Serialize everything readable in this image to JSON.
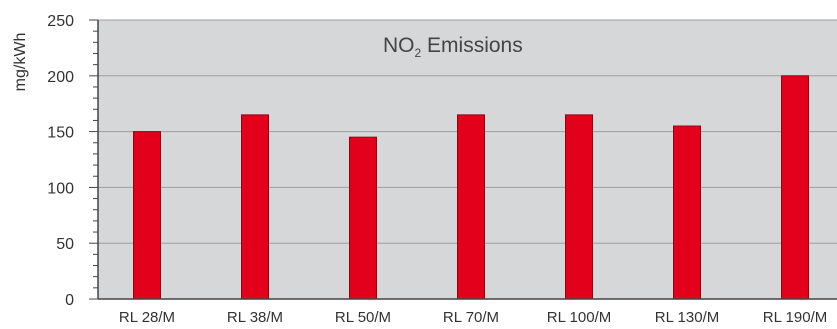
{
  "chart_data": {
    "type": "bar",
    "title": "NO",
    "title_subscript": "2",
    "title_suffix": " Emissions",
    "xlabel": "",
    "ylabel": "mg/kWh",
    "ylim": [
      0,
      250
    ],
    "yticks": [
      "0",
      "50",
      "100",
      "150",
      "200",
      "250"
    ],
    "categories": [
      "RL 28/M",
      "RL 38/M",
      "RL 50/M",
      "RL 70/M",
      "RL 100/M",
      "RL 130/M",
      "RL 190/M"
    ],
    "values": [
      150,
      165,
      145,
      165,
      165,
      155,
      200
    ],
    "grid": true,
    "colors": {
      "bar": "#e2001a",
      "bar_stroke": "#9a0012",
      "plot_background": "#d6d7d9",
      "grid": "#9e9e9e",
      "axis": "#444444"
    }
  }
}
